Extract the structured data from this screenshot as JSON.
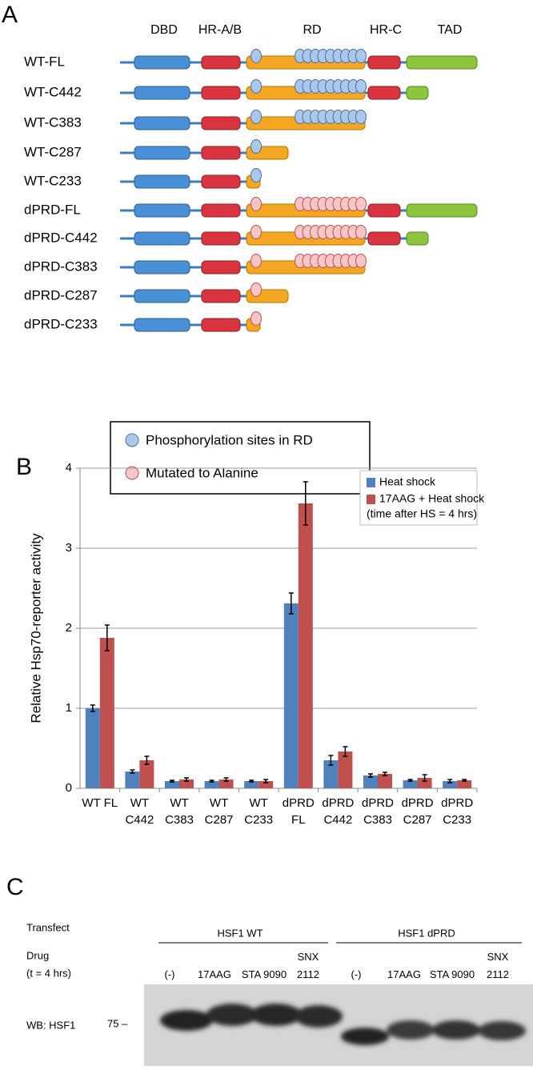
{
  "panel_a": {
    "label": "A",
    "domains": [
      "DBD",
      "HR-A/B",
      "RD",
      "HR-C",
      "TAD"
    ],
    "constructs": [
      "WT-FL",
      "WT-C442",
      "WT-C383",
      "WT-C287",
      "WT-C233",
      "dPRD-FL",
      "dPRD-C442",
      "dPRD-C383",
      "dPRD-C287",
      "dPRD-C233"
    ],
    "legend": [
      "Phosphorylation sites in RD",
      "Mutated to Alanine"
    ]
  },
  "chart_data": {
    "type": "bar",
    "panel_label": "B",
    "ylabel": "Relative Hsp70-reporter activity",
    "categories": [
      "WT FL",
      "WT C442",
      "WT C383",
      "WT C287",
      "WT C233",
      "dPRD FL",
      "dPRD C442",
      "dPRD C383",
      "dPRD C287",
      "dPRD C233"
    ],
    "series": [
      {
        "name": "Heat shock",
        "color": "#4f81bd",
        "values": [
          1.0,
          0.21,
          0.09,
          0.09,
          0.09,
          2.31,
          0.35,
          0.16,
          0.1,
          0.09
        ],
        "errors": [
          0.04,
          0.02,
          0.01,
          0.01,
          0.01,
          0.13,
          0.06,
          0.02,
          0.01,
          0.02
        ]
      },
      {
        "name": "17AAG + Heat shock",
        "color": "#c0504d",
        "values": [
          1.88,
          0.35,
          0.11,
          0.11,
          0.09,
          3.56,
          0.46,
          0.18,
          0.13,
          0.1
        ],
        "errors": [
          0.16,
          0.05,
          0.02,
          0.02,
          0.02,
          0.27,
          0.06,
          0.02,
          0.04,
          0.01
        ]
      }
    ],
    "legend_note": "(time after HS = 4 hrs)",
    "ylim": [
      0,
      4
    ],
    "yticks": [
      0,
      1,
      2,
      3,
      4
    ],
    "grid": true,
    "legend_position": "upper-right"
  },
  "panel_c": {
    "label": "C",
    "transfect_label": "Transfect",
    "groups": [
      "HSF1 WT",
      "HSF1 dPRD"
    ],
    "drug_label": "Drug",
    "time_label": "(t = 4 hrs)",
    "drugs": [
      "(-)",
      "17AAG",
      "STA 9090",
      "SNX 2112",
      "(-)",
      "17AAG",
      "STA 9090",
      "SNX 2112"
    ],
    "wb_label": "WB: HSF1",
    "marker": "75 –"
  }
}
